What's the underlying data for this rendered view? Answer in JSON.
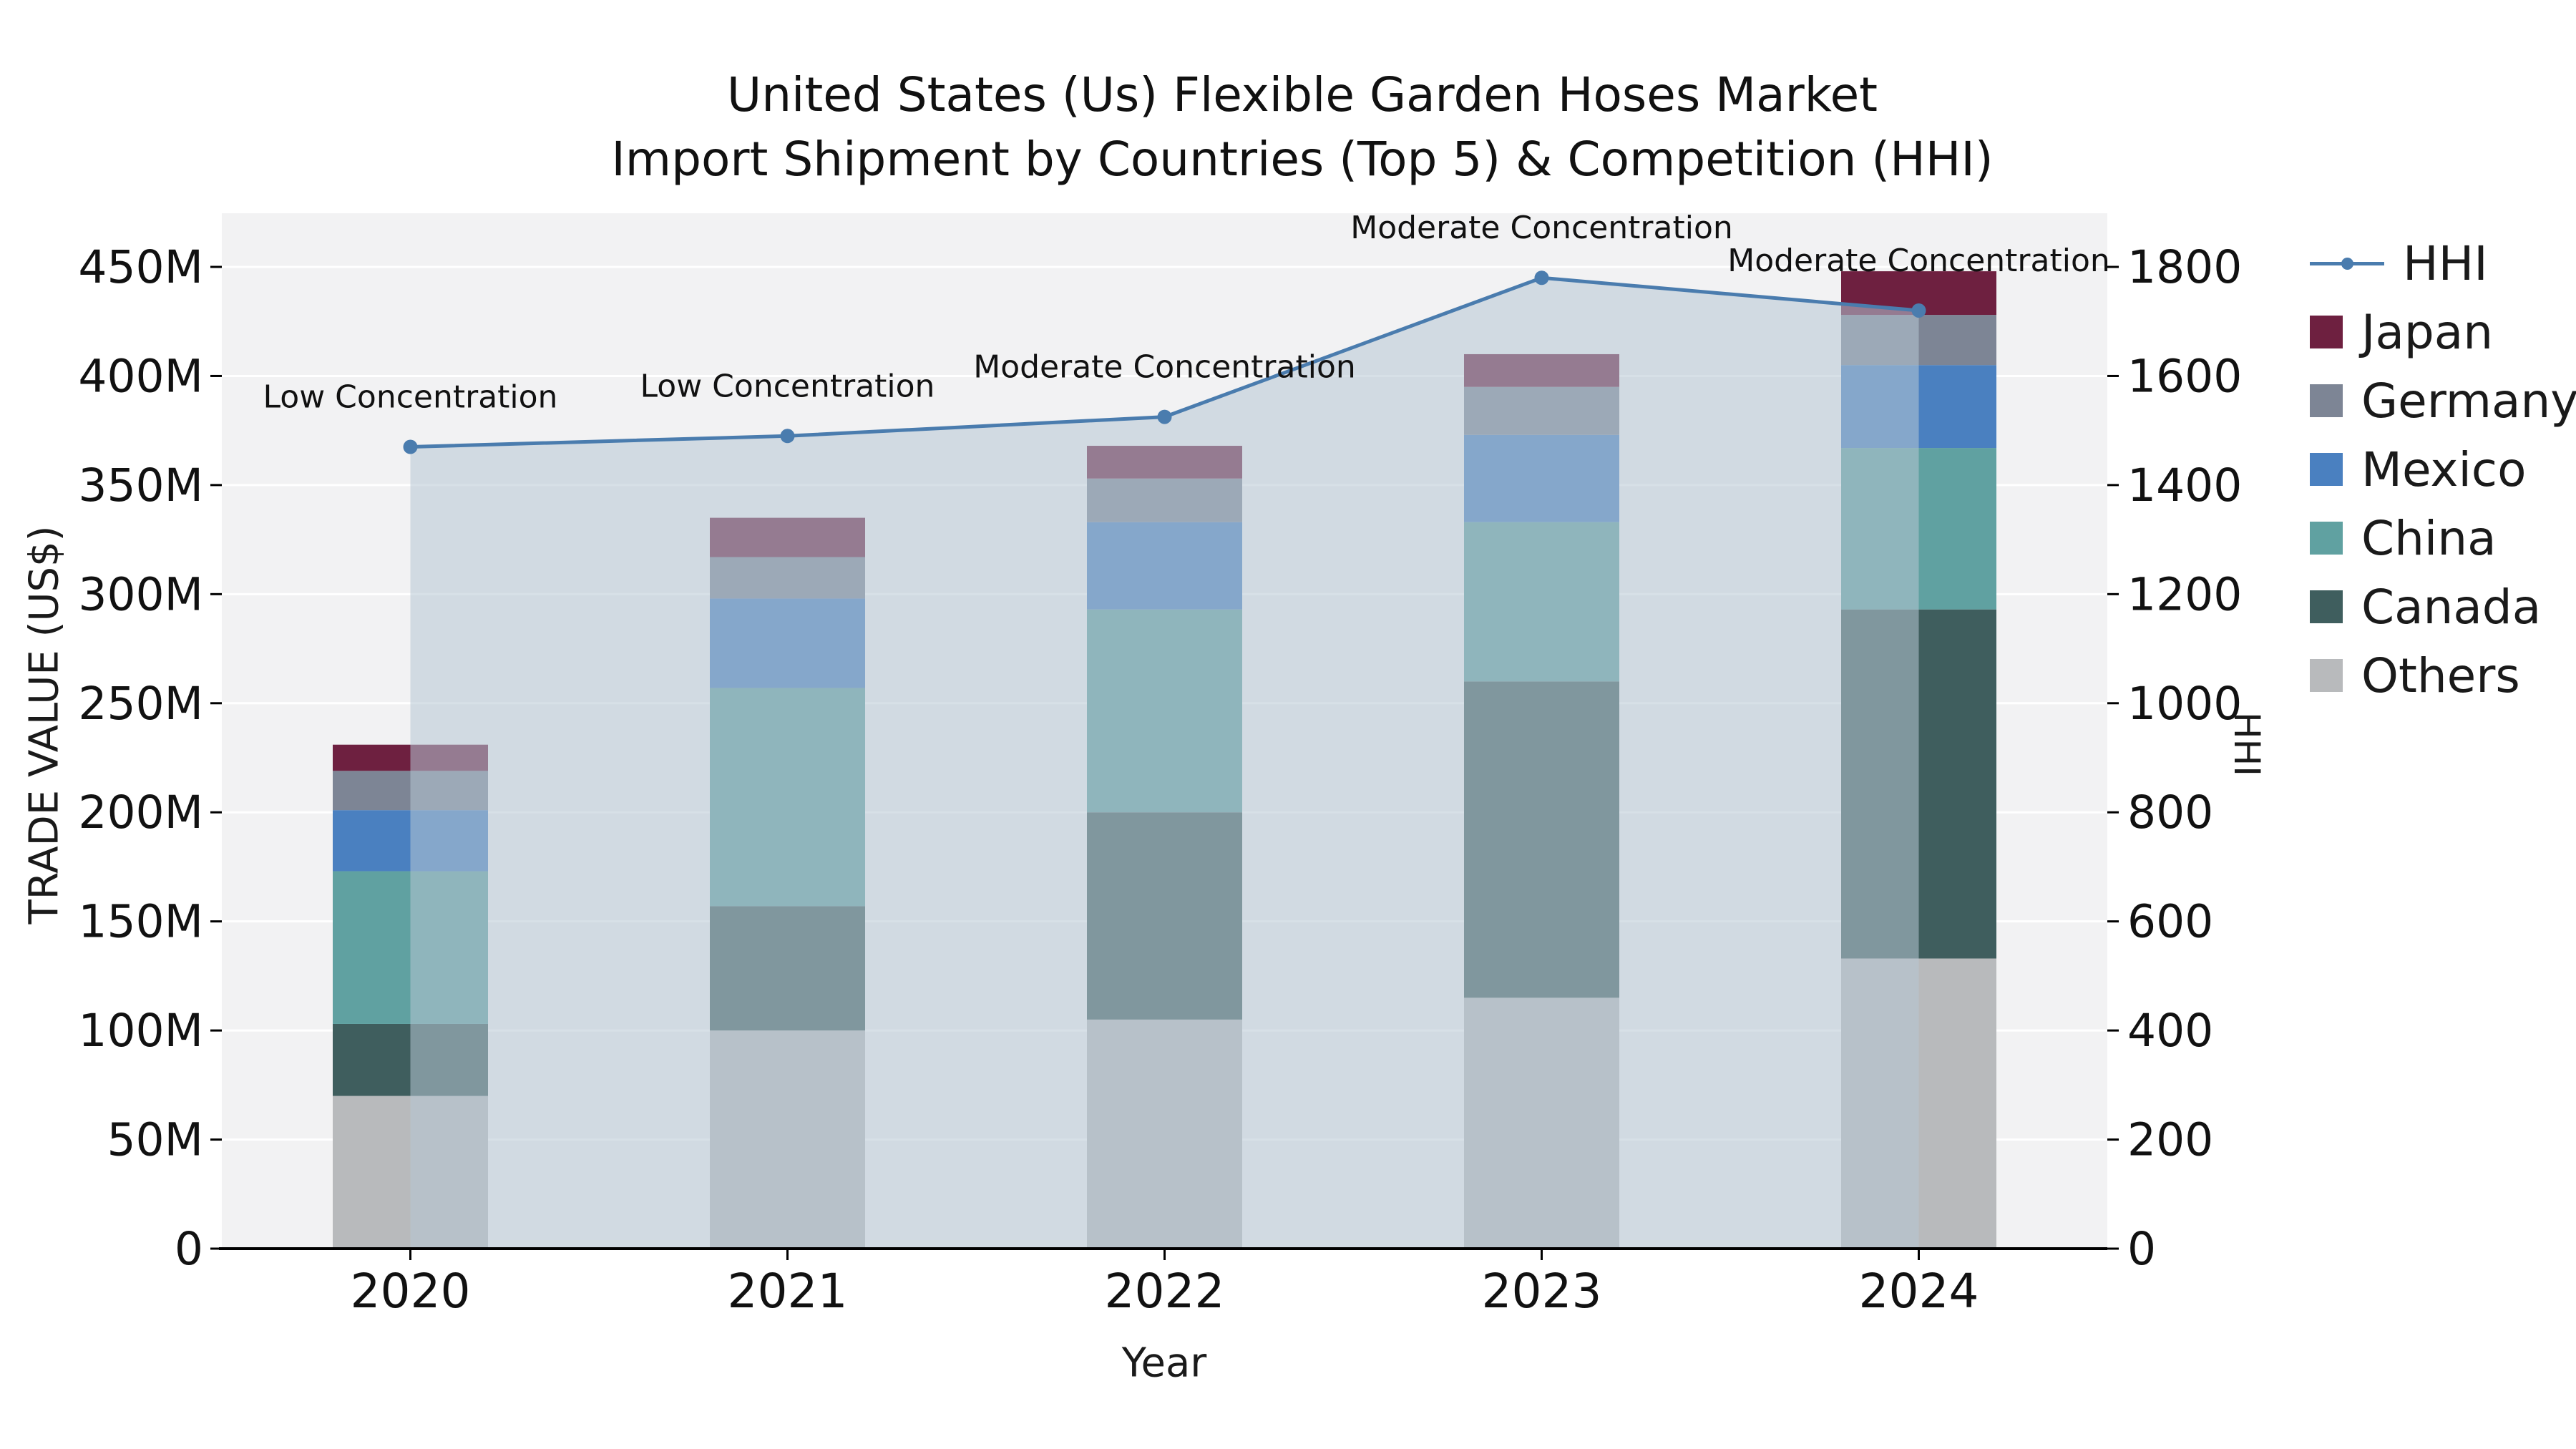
{
  "chart_data": {
    "type": "combo-stacked-bar-line",
    "title_line1": "United States (Us) Flexible Garden Hoses Market",
    "title_line2": "Import Shipment by Countries (Top 5) & Competition (HHI)",
    "xlabel": "Year",
    "ylabel_left": "TRADE VALUE (US$)",
    "ylabel_right": "HHI",
    "categories": [
      "2020",
      "2021",
      "2022",
      "2023",
      "2024"
    ],
    "bar_value_unit": "M US$",
    "bar_series": [
      {
        "name": "Others",
        "color": "#b8babc",
        "values": [
          70,
          100,
          105,
          115,
          133
        ]
      },
      {
        "name": "Canada",
        "color": "#3f5e5e",
        "values": [
          33,
          57,
          95,
          145,
          160
        ]
      },
      {
        "name": "China",
        "color": "#60a1a1",
        "values": [
          70,
          100,
          93,
          73,
          74
        ]
      },
      {
        "name": "Mexico",
        "color": "#4a80c0",
        "values": [
          28,
          41,
          40,
          40,
          38
        ]
      },
      {
        "name": "Germany",
        "color": "#7d8595",
        "values": [
          18,
          19,
          20,
          22,
          23
        ]
      },
      {
        "name": "Japan",
        "color": "#6e2040",
        "values": [
          12,
          18,
          15,
          15,
          20
        ]
      }
    ],
    "line_series": {
      "name": "HHI",
      "color": "#4a7cae",
      "values": [
        1470,
        1490,
        1525,
        1780,
        1720
      ]
    },
    "area_fill_color": "rgba(183,199,212,0.55)",
    "annotations": [
      "Low Concentration",
      "Low Concentration",
      "Moderate Concentration",
      "Moderate Concentration",
      "Moderate Concentration"
    ],
    "left_axis": {
      "ticks": [
        "0",
        "50M",
        "100M",
        "150M",
        "200M",
        "250M",
        "300M",
        "350M",
        "400M",
        "450M"
      ],
      "max": 450
    },
    "right_axis": {
      "ticks": [
        "0",
        "200",
        "400",
        "600",
        "800",
        "1000",
        "1200",
        "1400",
        "1600",
        "1800"
      ],
      "max": 1800
    },
    "legend": [
      {
        "label": "HHI",
        "type": "line",
        "color": "#4a7cae"
      },
      {
        "label": "Japan",
        "type": "square",
        "color": "#6e2040"
      },
      {
        "label": "Germany",
        "type": "square",
        "color": "#7d8595"
      },
      {
        "label": "Mexico",
        "type": "square",
        "color": "#4a80c0"
      },
      {
        "label": "China",
        "type": "square",
        "color": "#60a1a1"
      },
      {
        "label": "Canada",
        "type": "square",
        "color": "#3f5e5e"
      },
      {
        "label": "Others",
        "type": "square",
        "color": "#b8babc"
      }
    ],
    "plot_bg": "#f2f2f3",
    "grid_color": "#ffffff",
    "axis_text_color": "#111111"
  }
}
